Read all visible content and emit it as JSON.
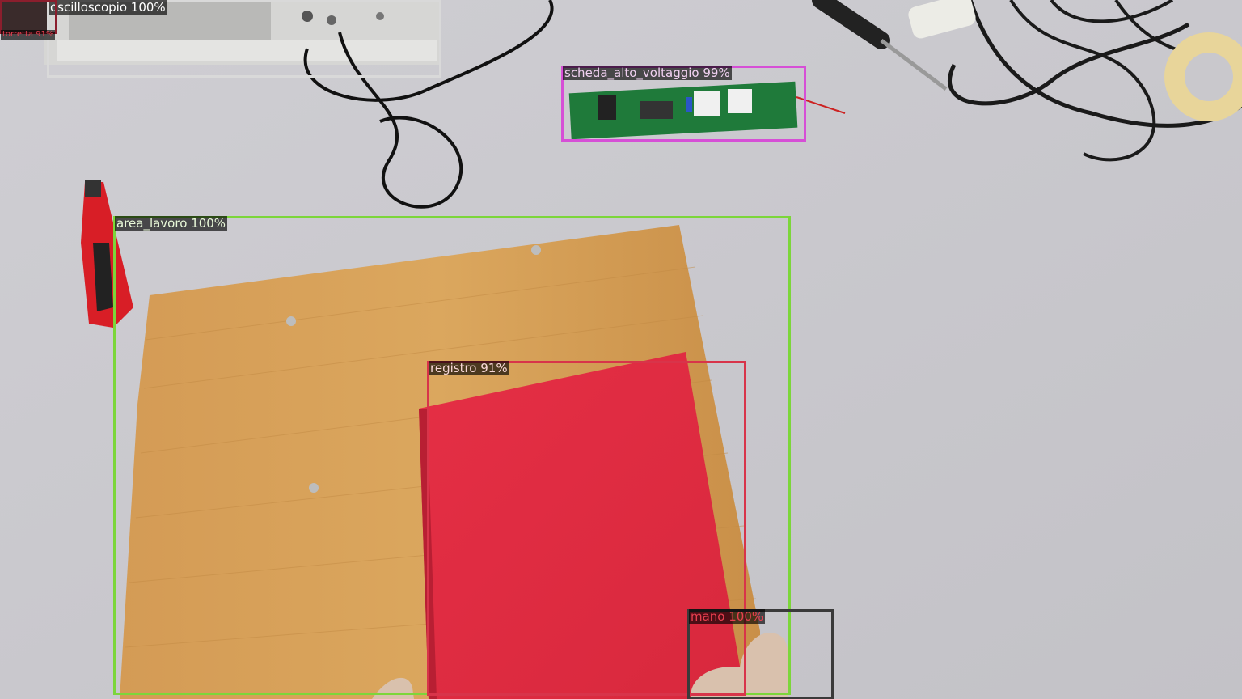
{
  "detections": [
    {
      "id": "oscilloscope",
      "label": "oscilloscopio 100%",
      "color": "#d9d9d9",
      "text_color": "#ffffff"
    },
    {
      "id": "turret",
      "label": "torretta 91%",
      "color": "#8b1e2d",
      "text_color": "#e04050"
    },
    {
      "id": "high-voltage-board",
      "label": "scheda_alto_voltaggio 99%",
      "color": "#d64fd6",
      "text_color": "#f0d0f0"
    },
    {
      "id": "work-area",
      "label": "area_lavoro 100%",
      "color": "#7cd63a",
      "text_color": "#e8f8d8"
    },
    {
      "id": "register",
      "label": "registro 91%",
      "color": "#d8344a",
      "text_color": "#f8d8d8"
    },
    {
      "id": "hand",
      "label": "mano 100%",
      "color": "#3a3a3a",
      "text_color": "#e84050"
    }
  ]
}
